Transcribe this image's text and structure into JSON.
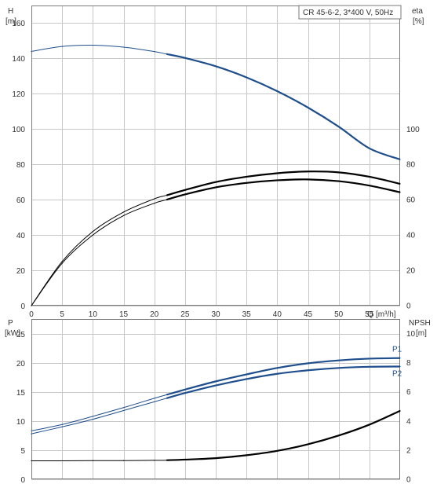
{
  "colors": {
    "background": "#ffffff",
    "grid": "#c8c8c8",
    "frame": "#7a7a7a",
    "blue": "#1f4e8c",
    "black": "#000000",
    "text": "#333333"
  },
  "chart_data": [
    {
      "type": "line",
      "title": "CR 45-6-2, 3*400 V, 50Hz",
      "xlabel": "Q [m³/h]",
      "ylabel_left_name": "H",
      "ylabel_left_unit": "[m]",
      "ylabel_right_name": "eta",
      "ylabel_right_unit": "[%]",
      "xlim": [
        0,
        60
      ],
      "ylim_left": [
        0,
        170
      ],
      "ylim_right": [
        0,
        170
      ],
      "grid": true,
      "x_ticks": [
        0,
        5,
        10,
        15,
        20,
        25,
        30,
        35,
        40,
        45,
        50,
        55
      ],
      "x_tick_labels": [
        "0",
        "5",
        "10",
        "15",
        "20",
        "25",
        "30",
        "35",
        "40",
        "45",
        "50",
        "55"
      ],
      "q_tick_label": "Q",
      "y_ticks_left": [
        0,
        20,
        40,
        60,
        80,
        100,
        120,
        140,
        160
      ],
      "y_ticks_right": [
        0,
        20,
        40,
        60,
        80,
        100
      ],
      "series": [
        {
          "axis": "left",
          "color": "#1f4e8c",
          "x": [
            0,
            5,
            10,
            15,
            20,
            22,
            25,
            30,
            35,
            40,
            45,
            50,
            55,
            60
          ],
          "y": [
            144,
            146.8,
            147.5,
            146.4,
            143.9,
            142.5,
            140.3,
            135.6,
            129.3,
            121.5,
            112.2,
            101.4,
            89.1,
            82.8
          ],
          "bold_from": 22
        },
        {
          "axis": "right",
          "color": "#000000",
          "x": [
            0,
            5,
            10,
            15,
            20,
            22,
            25,
            30,
            35,
            40,
            45,
            50,
            55,
            60
          ],
          "y": [
            0,
            25,
            42,
            53,
            60.5,
            62.5,
            65.5,
            70,
            73,
            75,
            76,
            75.5,
            73,
            69
          ],
          "bold_from": 22
        },
        {
          "axis": "right",
          "color": "#000000",
          "x": [
            0,
            5,
            10,
            15,
            20,
            22,
            25,
            30,
            35,
            40,
            45,
            50,
            55,
            60
          ],
          "y": [
            0,
            24,
            40,
            51,
            58,
            60,
            63,
            67,
            69.5,
            71,
            71.5,
            70.5,
            68,
            64.2
          ],
          "bold_from": 22
        }
      ]
    },
    {
      "type": "line",
      "ylabel_left_name": "P",
      "ylabel_left_unit": "[kW]",
      "ylabel_right_name": "NPSH",
      "ylabel_right_unit": "[m]",
      "xlim": [
        0,
        60
      ],
      "ylim_left": [
        0,
        27.5
      ],
      "ylim_right": [
        0,
        11
      ],
      "grid": true,
      "y_ticks_left": [
        0,
        5,
        10,
        15,
        20,
        25
      ],
      "y_ticks_right": [
        0,
        2,
        4,
        6,
        8,
        10
      ],
      "series": [
        {
          "name": "P1",
          "axis": "left",
          "color": "#1f4e8c",
          "x": [
            0,
            5,
            10,
            15,
            20,
            22,
            25,
            30,
            35,
            40,
            45,
            50,
            55,
            60
          ],
          "y": [
            8.3,
            9.4,
            10.8,
            12.3,
            13.9,
            14.5,
            15.4,
            16.8,
            18,
            19.1,
            19.9,
            20.4,
            20.7,
            20.8
          ],
          "bold_from": 22
        },
        {
          "name": "P2",
          "axis": "left",
          "color": "#1f4e8c",
          "x": [
            0,
            5,
            10,
            15,
            20,
            22,
            25,
            30,
            35,
            40,
            45,
            50,
            55,
            60
          ],
          "y": [
            7.8,
            9,
            10.3,
            11.8,
            13.3,
            13.9,
            14.8,
            16.1,
            17.2,
            18.1,
            18.7,
            19.1,
            19.3,
            19.35
          ],
          "bold_from": 22
        },
        {
          "axis": "right",
          "color": "#000000",
          "x": [
            0,
            5,
            10,
            15,
            20,
            22,
            25,
            30,
            35,
            40,
            45,
            50,
            55,
            60
          ],
          "y": [
            1.27,
            1.27,
            1.28,
            1.28,
            1.3,
            1.31,
            1.35,
            1.45,
            1.65,
            1.95,
            2.4,
            3,
            3.75,
            4.7
          ],
          "bold_from": 22
        }
      ]
    }
  ]
}
